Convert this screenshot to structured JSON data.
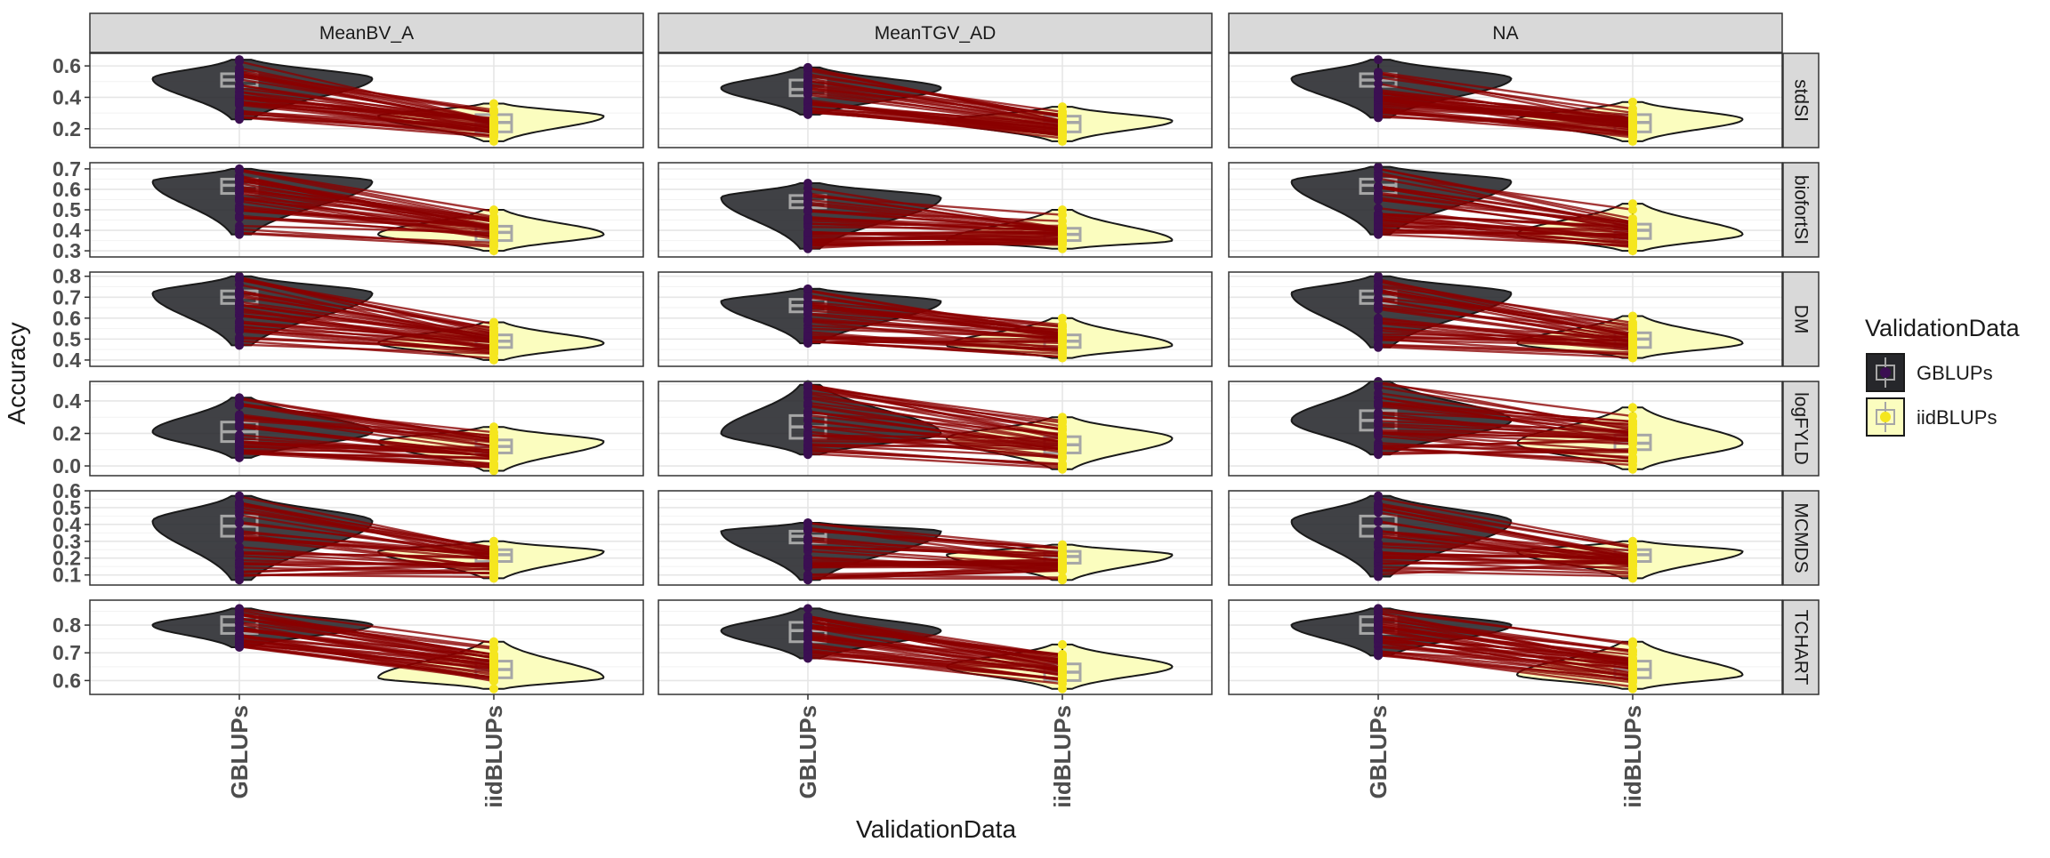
{
  "chart_data": {
    "type": "violin",
    "xlabel": "ValidationData",
    "ylabel": "Accuracy",
    "col_facets": [
      "MeanBV_A",
      "MeanTGV_AD",
      "NA"
    ],
    "row_facets": [
      "stdSI",
      "biofortSI",
      "DM",
      "logFYLD",
      "MCMDS",
      "TCHART"
    ],
    "categories": [
      "GBLUPs",
      "iidBLUPs"
    ],
    "legend": {
      "title": "ValidationData",
      "position": "right",
      "items": [
        {
          "label": "GBLUPs",
          "fill": "#26272b",
          "point": "#3b0f52"
        },
        {
          "label": "iidBLUPs",
          "fill": "#fbfdbf",
          "point": "#f5e61e"
        }
      ]
    },
    "colors": {
      "line": "#8b0000",
      "gblups_fill": "#26272b",
      "iid_fill": "#fbfdbf",
      "gblups_point": "#3b0f52",
      "iid_point": "#f5e61e",
      "strip": "#d9d9d9"
    },
    "rows": [
      {
        "trait": "stdSI",
        "ylim": [
          0.08,
          0.68
        ],
        "yticks": [
          "0.2",
          "0.4",
          "0.6"
        ],
        "ytick_values": [
          0.2,
          0.4,
          0.6
        ],
        "panels": [
          {
            "gblups": {
              "min": 0.26,
              "q1": 0.47,
              "median": 0.51,
              "q3": 0.55,
              "max": 0.64,
              "mode": 0.52
            },
            "iid": {
              "min": 0.12,
              "q1": 0.18,
              "median": 0.24,
              "q3": 0.29,
              "max": 0.36,
              "mode": 0.28
            }
          },
          {
            "gblups": {
              "min": 0.29,
              "q1": 0.41,
              "median": 0.45,
              "q3": 0.51,
              "max": 0.59,
              "mode": 0.46
            },
            "iid": {
              "min": 0.12,
              "q1": 0.18,
              "median": 0.24,
              "q3": 0.28,
              "max": 0.34,
              "mode": 0.25
            }
          },
          {
            "gblups": {
              "min": 0.27,
              "q1": 0.47,
              "median": 0.51,
              "q3": 0.55,
              "max": 0.64,
              "mode": 0.52
            },
            "iid": {
              "min": 0.12,
              "q1": 0.18,
              "median": 0.24,
              "q3": 0.29,
              "max": 0.37,
              "mode": 0.26
            }
          }
        ]
      },
      {
        "trait": "biofortSI",
        "ylim": [
          0.27,
          0.73
        ],
        "yticks": [
          "0.3",
          "0.4",
          "0.5",
          "0.6",
          "0.7"
        ],
        "ytick_values": [
          0.3,
          0.4,
          0.5,
          0.6,
          0.7
        ],
        "panels": [
          {
            "gblups": {
              "min": 0.38,
              "q1": 0.58,
              "median": 0.62,
              "q3": 0.65,
              "max": 0.7,
              "mode": 0.64
            },
            "iid": {
              "min": 0.3,
              "q1": 0.35,
              "median": 0.39,
              "q3": 0.42,
              "max": 0.5,
              "mode": 0.38
            }
          },
          {
            "gblups": {
              "min": 0.31,
              "q1": 0.51,
              "median": 0.54,
              "q3": 0.57,
              "max": 0.63,
              "mode": 0.56
            },
            "iid": {
              "min": 0.31,
              "q1": 0.35,
              "median": 0.38,
              "q3": 0.41,
              "max": 0.5,
              "mode": 0.35
            }
          },
          {
            "gblups": {
              "min": 0.38,
              "q1": 0.58,
              "median": 0.62,
              "q3": 0.65,
              "max": 0.71,
              "mode": 0.64
            },
            "iid": {
              "min": 0.3,
              "q1": 0.36,
              "median": 0.4,
              "q3": 0.43,
              "max": 0.53,
              "mode": 0.38
            }
          }
        ]
      },
      {
        "trait": "DM",
        "ylim": [
          0.37,
          0.82
        ],
        "yticks": [
          "0.4",
          "0.5",
          "0.6",
          "0.7",
          "0.8"
        ],
        "ytick_values": [
          0.4,
          0.5,
          0.6,
          0.7,
          0.8
        ],
        "panels": [
          {
            "gblups": {
              "min": 0.47,
              "q1": 0.67,
              "median": 0.7,
              "q3": 0.73,
              "max": 0.8,
              "mode": 0.72
            },
            "iid": {
              "min": 0.4,
              "q1": 0.46,
              "median": 0.49,
              "q3": 0.52,
              "max": 0.58,
              "mode": 0.48
            }
          },
          {
            "gblups": {
              "min": 0.48,
              "q1": 0.63,
              "median": 0.66,
              "q3": 0.69,
              "max": 0.74,
              "mode": 0.68
            },
            "iid": {
              "min": 0.41,
              "q1": 0.46,
              "median": 0.49,
              "q3": 0.52,
              "max": 0.6,
              "mode": 0.47
            }
          },
          {
            "gblups": {
              "min": 0.46,
              "q1": 0.67,
              "median": 0.7,
              "q3": 0.73,
              "max": 0.8,
              "mode": 0.72
            },
            "iid": {
              "min": 0.41,
              "q1": 0.46,
              "median": 0.5,
              "q3": 0.53,
              "max": 0.61,
              "mode": 0.48
            }
          }
        ]
      },
      {
        "trait": "logFYLD",
        "ylim": [
          -0.06,
          0.52
        ],
        "yticks": [
          "0.0",
          "0.2",
          "0.4"
        ],
        "ytick_values": [
          0.0,
          0.2,
          0.4
        ],
        "panels": [
          {
            "gblups": {
              "min": 0.05,
              "q1": 0.15,
              "median": 0.21,
              "q3": 0.27,
              "max": 0.42,
              "mode": 0.21
            },
            "iid": {
              "min": -0.03,
              "q1": 0.08,
              "median": 0.12,
              "q3": 0.16,
              "max": 0.24,
              "mode": 0.15
            }
          },
          {
            "gblups": {
              "min": 0.07,
              "q1": 0.17,
              "median": 0.24,
              "q3": 0.31,
              "max": 0.5,
              "mode": 0.2
            },
            "iid": {
              "min": -0.02,
              "q1": 0.08,
              "median": 0.13,
              "q3": 0.18,
              "max": 0.3,
              "mode": 0.17
            }
          },
          {
            "gblups": {
              "min": 0.07,
              "q1": 0.22,
              "median": 0.28,
              "q3": 0.34,
              "max": 0.52,
              "mode": 0.28
            },
            "iid": {
              "min": -0.02,
              "q1": 0.1,
              "median": 0.14,
              "q3": 0.19,
              "max": 0.36,
              "mode": 0.14
            }
          }
        ]
      },
      {
        "trait": "MCMDS",
        "ylim": [
          0.04,
          0.6
        ],
        "yticks": [
          "0.1",
          "0.2",
          "0.3",
          "0.4",
          "0.5",
          "0.6"
        ],
        "ytick_values": [
          0.1,
          0.2,
          0.3,
          0.4,
          0.5,
          0.6
        ],
        "panels": [
          {
            "gblups": {
              "min": 0.07,
              "q1": 0.33,
              "median": 0.39,
              "q3": 0.45,
              "max": 0.57,
              "mode": 0.42
            },
            "iid": {
              "min": 0.08,
              "q1": 0.18,
              "median": 0.22,
              "q3": 0.25,
              "max": 0.3,
              "mode": 0.24
            }
          },
          {
            "gblups": {
              "min": 0.07,
              "q1": 0.29,
              "median": 0.33,
              "q3": 0.36,
              "max": 0.41,
              "mode": 0.36
            },
            "iid": {
              "min": 0.07,
              "q1": 0.17,
              "median": 0.21,
              "q3": 0.24,
              "max": 0.28,
              "mode": 0.22
            }
          },
          {
            "gblups": {
              "min": 0.09,
              "q1": 0.33,
              "median": 0.39,
              "q3": 0.45,
              "max": 0.57,
              "mode": 0.42
            },
            "iid": {
              "min": 0.08,
              "q1": 0.18,
              "median": 0.22,
              "q3": 0.25,
              "max": 0.3,
              "mode": 0.24
            }
          }
        ]
      },
      {
        "trait": "TCHART",
        "ylim": [
          0.55,
          0.89
        ],
        "yticks": [
          "0.6",
          "0.7",
          "0.8"
        ],
        "ytick_values": [
          0.6,
          0.7,
          0.8
        ],
        "panels": [
          {
            "gblups": {
              "min": 0.72,
              "q1": 0.77,
              "median": 0.8,
              "q3": 0.83,
              "max": 0.86,
              "mode": 0.8
            },
            "iid": {
              "min": 0.57,
              "q1": 0.61,
              "median": 0.64,
              "q3": 0.67,
              "max": 0.74,
              "mode": 0.61
            }
          },
          {
            "gblups": {
              "min": 0.68,
              "q1": 0.74,
              "median": 0.78,
              "q3": 0.81,
              "max": 0.86,
              "mode": 0.78
            },
            "iid": {
              "min": 0.57,
              "q1": 0.6,
              "median": 0.63,
              "q3": 0.66,
              "max": 0.73,
              "mode": 0.65
            }
          },
          {
            "gblups": {
              "min": 0.69,
              "q1": 0.77,
              "median": 0.8,
              "q3": 0.83,
              "max": 0.86,
              "mode": 0.8
            },
            "iid": {
              "min": 0.57,
              "q1": 0.61,
              "median": 0.64,
              "q3": 0.67,
              "max": 0.74,
              "mode": 0.62
            }
          }
        ]
      }
    ]
  }
}
